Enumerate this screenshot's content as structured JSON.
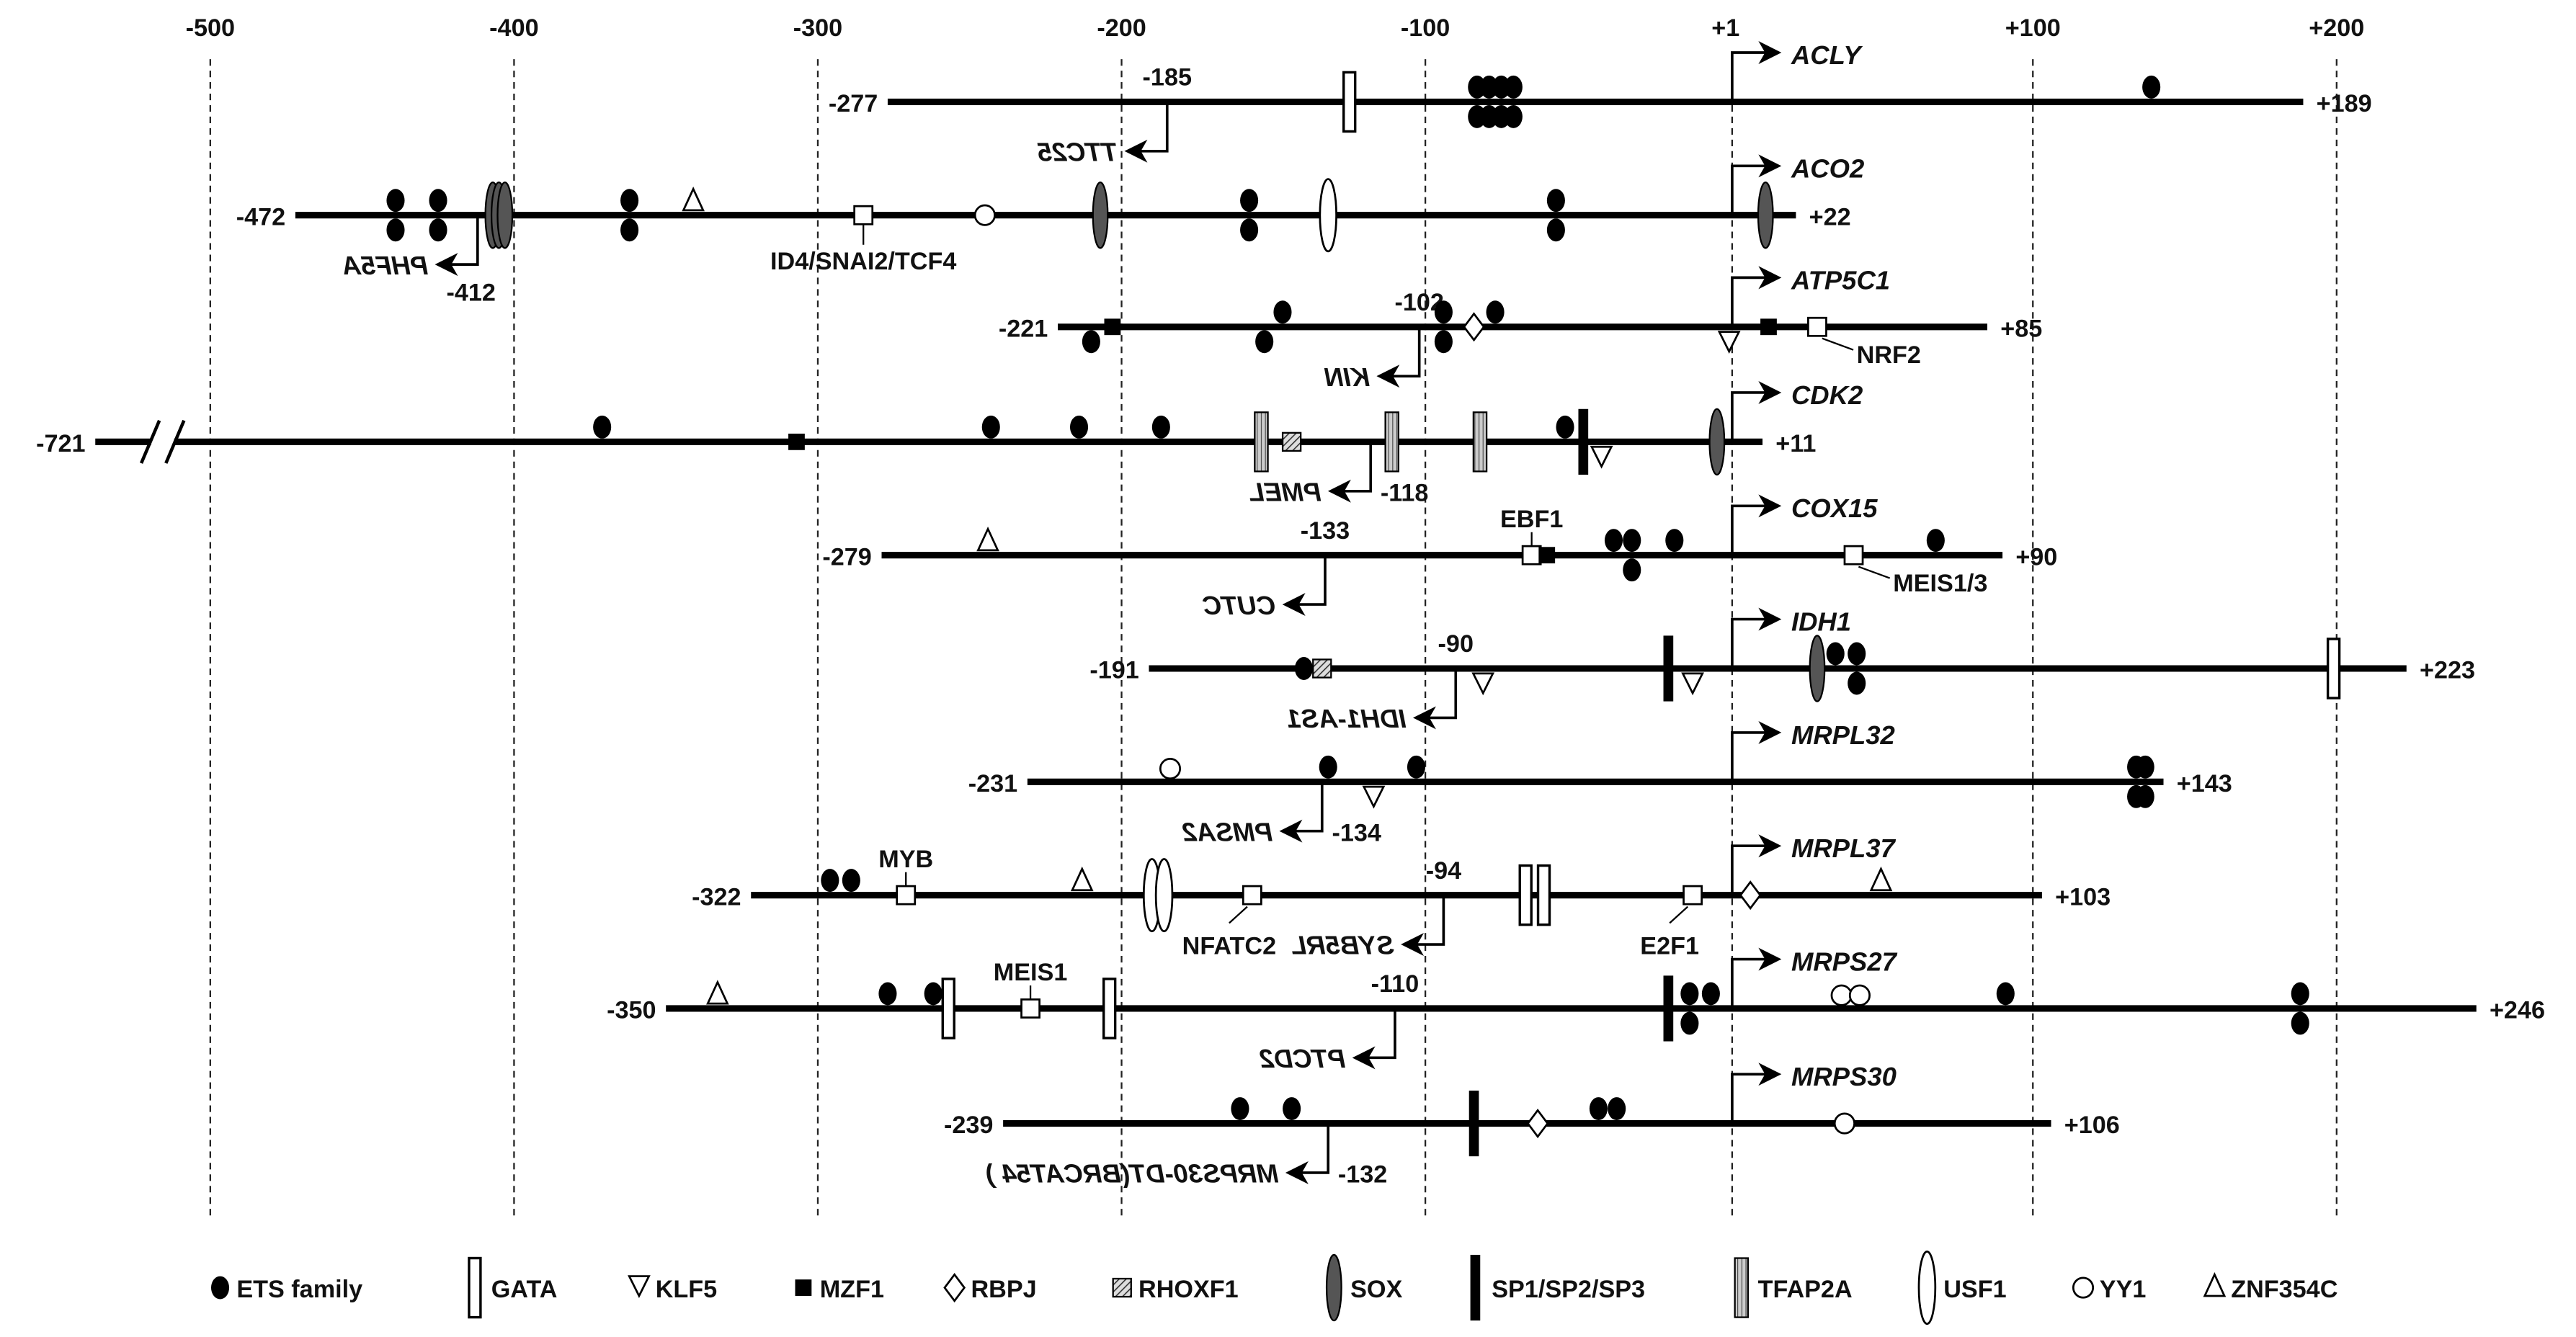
{
  "axis": {
    "ticks": [
      {
        "value": -500,
        "label": "-500"
      },
      {
        "value": -400,
        "label": "-400"
      },
      {
        "value": -300,
        "label": "-300"
      },
      {
        "value": -200,
        "label": "-200"
      },
      {
        "value": -100,
        "label": "-100"
      },
      {
        "value": 1,
        "label": "+1"
      },
      {
        "value": 100,
        "label": "+100"
      },
      {
        "value": 200,
        "label": "+200"
      }
    ]
  },
  "genes": [
    {
      "name": "ACLY",
      "start": -277,
      "end": 189,
      "start_label": "-277",
      "end_label": "+189",
      "antisense": {
        "name": "TTC25",
        "pos": -185,
        "pos_label": "-185",
        "number_placement": "above"
      },
      "sites": [
        {
          "tf": "GATA",
          "pos": -125
        },
        {
          "tf": "ETS",
          "pos": -83,
          "side": "both"
        },
        {
          "tf": "ETS",
          "pos": -79,
          "side": "both"
        },
        {
          "tf": "ETS",
          "pos": -75,
          "side": "both"
        },
        {
          "tf": "ETS",
          "pos": -71,
          "side": "both"
        },
        {
          "tf": "ETS",
          "pos": 139,
          "side": "above"
        }
      ]
    },
    {
      "name": "ACO2",
      "start": -472,
      "end": 22,
      "start_label": "-472",
      "end_label": "+22",
      "antisense": {
        "name": "PHF5A",
        "pos": -412,
        "pos_label": "-412",
        "number_placement": "below"
      },
      "sites": [
        {
          "tf": "ETS",
          "pos": -439,
          "side": "both"
        },
        {
          "tf": "ETS",
          "pos": -425,
          "side": "both"
        },
        {
          "tf": "SOX",
          "pos": -407
        },
        {
          "tf": "SOX",
          "pos": -405
        },
        {
          "tf": "SOX",
          "pos": -403
        },
        {
          "tf": "ETS",
          "pos": -362,
          "side": "both"
        },
        {
          "tf": "ZNF354C",
          "pos": -341
        },
        {
          "tf": "BOX",
          "pos": -285,
          "label": "ID4/SNAI2/TCF4",
          "label_pos": "below"
        },
        {
          "tf": "YY1",
          "pos": -245,
          "side": "center"
        },
        {
          "tf": "SOX",
          "pos": -207
        },
        {
          "tf": "ETS",
          "pos": -158,
          "side": "both"
        },
        {
          "tf": "USF1",
          "pos": -132
        },
        {
          "tf": "ETS",
          "pos": -57,
          "side": "both"
        },
        {
          "tf": "SOX",
          "pos": 12
        }
      ]
    },
    {
      "name": "ATP5C1",
      "start": -221,
      "end": 85,
      "start_label": "-221",
      "end_label": "+85",
      "antisense": {
        "name": "KIN",
        "pos": -102,
        "pos_label": "-102",
        "number_placement": "above"
      },
      "sites": [
        {
          "tf": "ETS",
          "pos": -210,
          "side": "below"
        },
        {
          "tf": "MZF1",
          "pos": -203
        },
        {
          "tf": "ETS",
          "pos": -153,
          "side": "below"
        },
        {
          "tf": "ETS",
          "pos": -147,
          "side": "above"
        },
        {
          "tf": "ETS",
          "pos": -94,
          "side": "both"
        },
        {
          "tf": "RBPJ",
          "pos": -84
        },
        {
          "tf": "ETS",
          "pos": -77,
          "side": "above"
        },
        {
          "tf": "KLF5",
          "pos": 0
        },
        {
          "tf": "MZF1",
          "pos": 13
        },
        {
          "tf": "BOX",
          "pos": 29,
          "label": "NRF2",
          "label_pos": "lower-right"
        }
      ]
    },
    {
      "name": "CDK2",
      "start": -721,
      "end": 11,
      "start_label": "-721",
      "end_label": "+11",
      "antisense": {
        "name": "PMEL",
        "pos": -118,
        "pos_label": "-118",
        "number_placement": "right"
      },
      "sites": [
        {
          "tf": "ETS",
          "pos": -371,
          "side": "above"
        },
        {
          "tf": "MZF1",
          "pos": -307
        },
        {
          "tf": "ETS",
          "pos": -243,
          "side": "above"
        },
        {
          "tf": "ETS",
          "pos": -214,
          "side": "above"
        },
        {
          "tf": "ETS",
          "pos": -187,
          "side": "above"
        },
        {
          "tf": "TFAP2A",
          "pos": -154
        },
        {
          "tf": "RHOXF1",
          "pos": -144
        },
        {
          "tf": "TFAP2A",
          "pos": -111
        },
        {
          "tf": "TFAP2A",
          "pos": -82
        },
        {
          "tf": "ETS",
          "pos": -54,
          "side": "above"
        },
        {
          "tf": "SP1",
          "pos": -48
        },
        {
          "tf": "KLF5",
          "pos": -42
        },
        {
          "tf": "SOX",
          "pos": -4
        }
      ]
    },
    {
      "name": "COX15",
      "start": -279,
      "end": 90,
      "start_label": "-279",
      "end_label": "+90",
      "antisense": {
        "name": "CUTC",
        "pos": -133,
        "pos_label": "-133",
        "number_placement": "above"
      },
      "sites": [
        {
          "tf": "ZNF354C",
          "pos": -244
        },
        {
          "tf": "BOX",
          "pos": -65,
          "label": "EBF1",
          "label_pos": "above"
        },
        {
          "tf": "MZF1",
          "pos": -60
        },
        {
          "tf": "ETS",
          "pos": -38,
          "side": "above"
        },
        {
          "tf": "ETS",
          "pos": -32,
          "side": "both"
        },
        {
          "tf": "ETS",
          "pos": -18,
          "side": "above"
        },
        {
          "tf": "BOX",
          "pos": 41,
          "label": "MEIS1/3",
          "label_pos": "lower-right"
        },
        {
          "tf": "ETS",
          "pos": 68,
          "side": "above"
        }
      ]
    },
    {
      "name": "IDH1",
      "start": -191,
      "end": 223,
      "start_label": "-191",
      "end_label": "+223",
      "antisense": {
        "name": "IDH1-AS1",
        "pos": -90,
        "pos_label": "-90",
        "number_placement": "above"
      },
      "sites": [
        {
          "tf": "ETS",
          "pos": -140,
          "side": "center"
        },
        {
          "tf": "RHOXF1",
          "pos": -134
        },
        {
          "tf": "KLF5",
          "pos": -81
        },
        {
          "tf": "SP1",
          "pos": -20
        },
        {
          "tf": "KLF5",
          "pos": -12
        },
        {
          "tf": "SOX",
          "pos": 29
        },
        {
          "tf": "ETS",
          "pos": 35,
          "side": "above"
        },
        {
          "tf": "ETS",
          "pos": 42,
          "side": "both"
        },
        {
          "tf": "GATA",
          "pos": 199
        }
      ]
    },
    {
      "name": "MRPL32",
      "start": -231,
      "end": 143,
      "start_label": "-231",
      "end_label": "+143",
      "antisense": {
        "name": "PMSA2",
        "pos": -134,
        "pos_label": "-134",
        "number_placement": "right"
      },
      "sites": [
        {
          "tf": "YY1",
          "pos": -184,
          "side": "above"
        },
        {
          "tf": "ETS",
          "pos": -132,
          "side": "above"
        },
        {
          "tf": "KLF5",
          "pos": -117
        },
        {
          "tf": "ETS",
          "pos": -103,
          "side": "above"
        },
        {
          "tf": "ETS",
          "pos": 134,
          "side": "both"
        },
        {
          "tf": "ETS",
          "pos": 137,
          "side": "both"
        }
      ]
    },
    {
      "name": "MRPL37",
      "start": -322,
      "end": 103,
      "start_label": "-322",
      "end_label": "+103",
      "antisense": {
        "name": "SYB5RL",
        "pos": -94,
        "pos_label": "-94",
        "number_placement": "above"
      },
      "sites": [
        {
          "tf": "ETS",
          "pos": -296,
          "side": "above"
        },
        {
          "tf": "ETS",
          "pos": -289,
          "side": "above"
        },
        {
          "tf": "BOX",
          "pos": -271,
          "label": "MYB",
          "label_pos": "above"
        },
        {
          "tf": "ZNF354C",
          "pos": -213
        },
        {
          "tf": "USF1",
          "pos": -190
        },
        {
          "tf": "USF1",
          "pos": -186
        },
        {
          "tf": "BOX",
          "pos": -157,
          "label": "NFATC2",
          "label_pos": "lower-left"
        },
        {
          "tf": "GATA",
          "pos": -67
        },
        {
          "tf": "GATA",
          "pos": -61
        },
        {
          "tf": "BOX",
          "pos": -12,
          "label": "E2F1",
          "label_pos": "lower-left"
        },
        {
          "tf": "RBPJ",
          "pos": 7
        },
        {
          "tf": "ZNF354C",
          "pos": 50
        }
      ]
    },
    {
      "name": "MRPS27",
      "start": -350,
      "end": 246,
      "start_label": "-350",
      "end_label": "+246",
      "antisense": {
        "name": "PTCD2",
        "pos": -110,
        "pos_label": "-110",
        "number_placement": "above"
      },
      "sites": [
        {
          "tf": "ZNF354C",
          "pos": -333
        },
        {
          "tf": "ETS",
          "pos": -277,
          "side": "above"
        },
        {
          "tf": "ETS",
          "pos": -262,
          "side": "above"
        },
        {
          "tf": "GATA",
          "pos": -257
        },
        {
          "tf": "BOX",
          "pos": -230,
          "label": "MEIS1",
          "label_pos": "above"
        },
        {
          "tf": "GATA",
          "pos": -204
        },
        {
          "tf": "SP1",
          "pos": -20
        },
        {
          "tf": "ETS",
          "pos": -13,
          "side": "both"
        },
        {
          "tf": "ETS",
          "pos": -6,
          "side": "above"
        },
        {
          "tf": "YY1",
          "pos": 37,
          "side": "above"
        },
        {
          "tf": "YY1",
          "pos": 43,
          "side": "above"
        },
        {
          "tf": "ETS",
          "pos": 91,
          "side": "above"
        },
        {
          "tf": "ETS",
          "pos": 188,
          "side": "both"
        }
      ]
    },
    {
      "name": "MRPS30",
      "start": -239,
      "end": 106,
      "start_label": "-239",
      "end_label": "+106",
      "antisense": {
        "name": "MRPS30-DT(BRCAT54 )",
        "pos": -132,
        "pos_label": "-132",
        "number_placement": "right"
      },
      "sites": [
        {
          "tf": "ETS",
          "pos": -161,
          "side": "above"
        },
        {
          "tf": "ETS",
          "pos": -144,
          "side": "above"
        },
        {
          "tf": "SP1",
          "pos": -84
        },
        {
          "tf": "RBPJ",
          "pos": -63
        },
        {
          "tf": "ETS",
          "pos": -43,
          "side": "above"
        },
        {
          "tf": "ETS",
          "pos": -37,
          "side": "above"
        },
        {
          "tf": "YY1",
          "pos": 38,
          "side": "center"
        }
      ]
    }
  ],
  "legend": [
    {
      "tf": "ETS",
      "label": "ETS family"
    },
    {
      "tf": "GATA",
      "label": "GATA"
    },
    {
      "tf": "KLF5",
      "label": "KLF5"
    },
    {
      "tf": "MZF1",
      "label": "MZF1"
    },
    {
      "tf": "RBPJ",
      "label": "RBPJ"
    },
    {
      "tf": "RHOXF1",
      "label": "RHOXF1"
    },
    {
      "tf": "SOX",
      "label": "SOX"
    },
    {
      "tf": "SP1",
      "label": "SP1/SP2/SP3"
    },
    {
      "tf": "TFAP2A",
      "label": "TFAP2A"
    },
    {
      "tf": "USF1",
      "label": "USF1"
    },
    {
      "tf": "YY1",
      "label": "YY1"
    },
    {
      "tf": "ZNF354C",
      "label": "ZNF354C"
    }
  ]
}
